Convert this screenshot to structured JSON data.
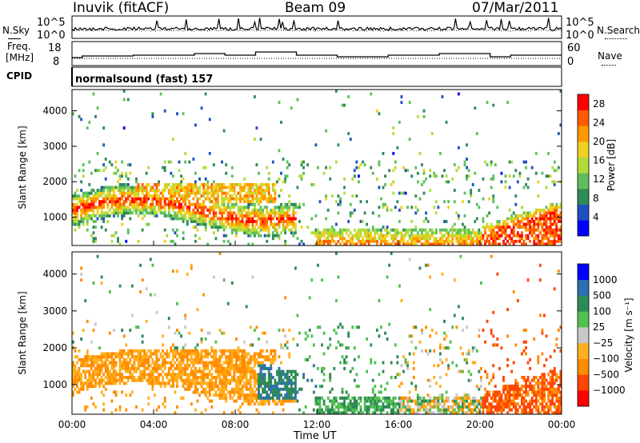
{
  "header": {
    "title": "Inuvik (fitACF)",
    "beam": "Beam 09",
    "date": "07/Mar/2011"
  },
  "noise_panel": {
    "left_label": "N.Sky",
    "right_label": "N.Search",
    "left_ticks": [
      "10^5",
      "10^0"
    ],
    "right_ticks": [
      "10^5",
      "10^0"
    ]
  },
  "freq_panel": {
    "left_label_1": "Freq.",
    "left_label_2": "[MHz]",
    "left_ticks": [
      "18",
      "8"
    ],
    "right_label": "Nave",
    "right_ticks": [
      "60",
      "0"
    ]
  },
  "cpid": {
    "label": "CPID",
    "value": "normalsound (fast) 157"
  },
  "colors": {
    "power": [
      "#0000ff",
      "#2050c0",
      "#2e8b57",
      "#5fbf5f",
      "#b0dc3a",
      "#f0d020",
      "#ff9a00",
      "#ff5a00",
      "#ff0000"
    ],
    "velocity": [
      "#ff0000",
      "#ff4500",
      "#ff8c00",
      "#ffb020",
      "#c8c8c8",
      "#50c050",
      "#2e8b57",
      "#2e6fb0",
      "#0000ff"
    ]
  },
  "chart_data": [
    {
      "type": "heatmap",
      "title": "",
      "xlabel": "Time UT",
      "ylabel": "Slant Range [km]",
      "x_ticks": [
        "00:00",
        "04:00",
        "08:00",
        "12:00",
        "16:00",
        "20:00",
        "00:00"
      ],
      "y_ticks": [
        1000,
        2000,
        3000,
        4000
      ],
      "ylim": [
        200,
        4600
      ],
      "colorbar_label": "Power [dB]",
      "colorbar_ticks": [
        4,
        8,
        12,
        16,
        20,
        24,
        28
      ],
      "colorbar_range": [
        0,
        30
      ]
    },
    {
      "type": "heatmap",
      "title": "",
      "xlabel": "Time UT",
      "ylabel": "Slant Range [km]",
      "x_ticks": [
        "00:00",
        "04:00",
        "08:00",
        "12:00",
        "16:00",
        "20:00",
        "00:00"
      ],
      "y_ticks": [
        1000,
        2000,
        3000,
        4000
      ],
      "ylim": [
        200,
        4600
      ],
      "colorbar_label": "Velocity [m s⁻¹]",
      "colorbar_ticks": [
        "1000",
        "500",
        "100",
        "25",
        "−25",
        "−100",
        "−500",
        "−1000"
      ]
    }
  ]
}
